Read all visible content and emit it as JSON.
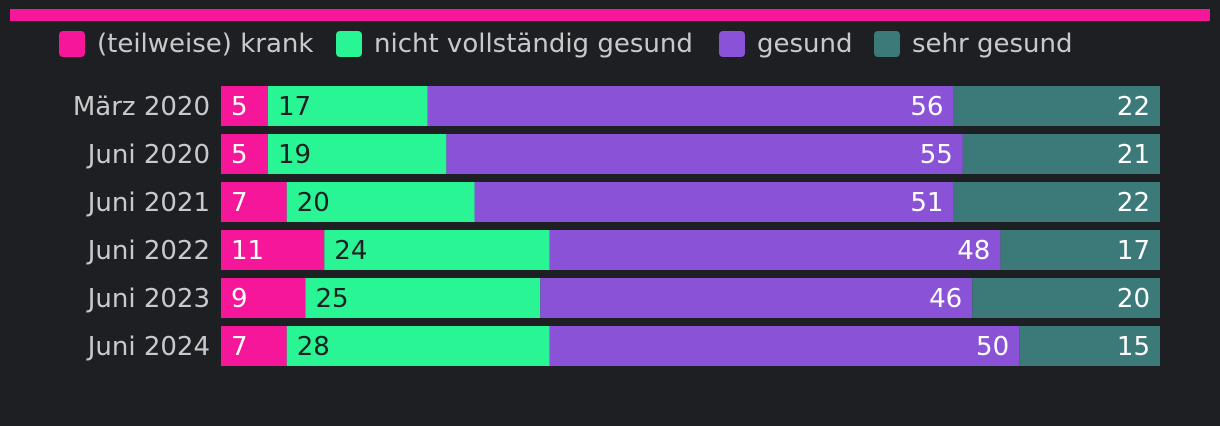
{
  "chart_data": {
    "type": "bar",
    "orientation": "horizontal",
    "stacked": true,
    "normalized_percent": true,
    "categories": [
      "März 2020",
      "Juni 2020",
      "Juni 2021",
      "Juni 2022",
      "Juni 2023",
      "Juni 2024"
    ],
    "series": [
      {
        "name": "(teilweise) krank",
        "color": "#f5169a",
        "label_color": "#ffffff",
        "label_align": "start",
        "values": [
          5,
          5,
          7,
          11,
          9,
          7
        ]
      },
      {
        "name": "nicht vollständig gesund",
        "color": "#2af595",
        "label_color": "#1e1f22",
        "label_align": "start",
        "values": [
          17,
          19,
          20,
          24,
          25,
          28
        ]
      },
      {
        "name": "gesund",
        "color": "#8a52d6",
        "label_color": "#ffffff",
        "label_align": "end",
        "values": [
          56,
          55,
          51,
          48,
          46,
          50
        ]
      },
      {
        "name": "sehr gesund",
        "color": "#3c7a7a",
        "label_color": "#ffffff",
        "label_align": "end",
        "values": [
          22,
          21,
          22,
          17,
          20,
          15
        ]
      }
    ],
    "legend_position": "top-left",
    "grid": false,
    "accent_bar_color": "#f5169a"
  }
}
